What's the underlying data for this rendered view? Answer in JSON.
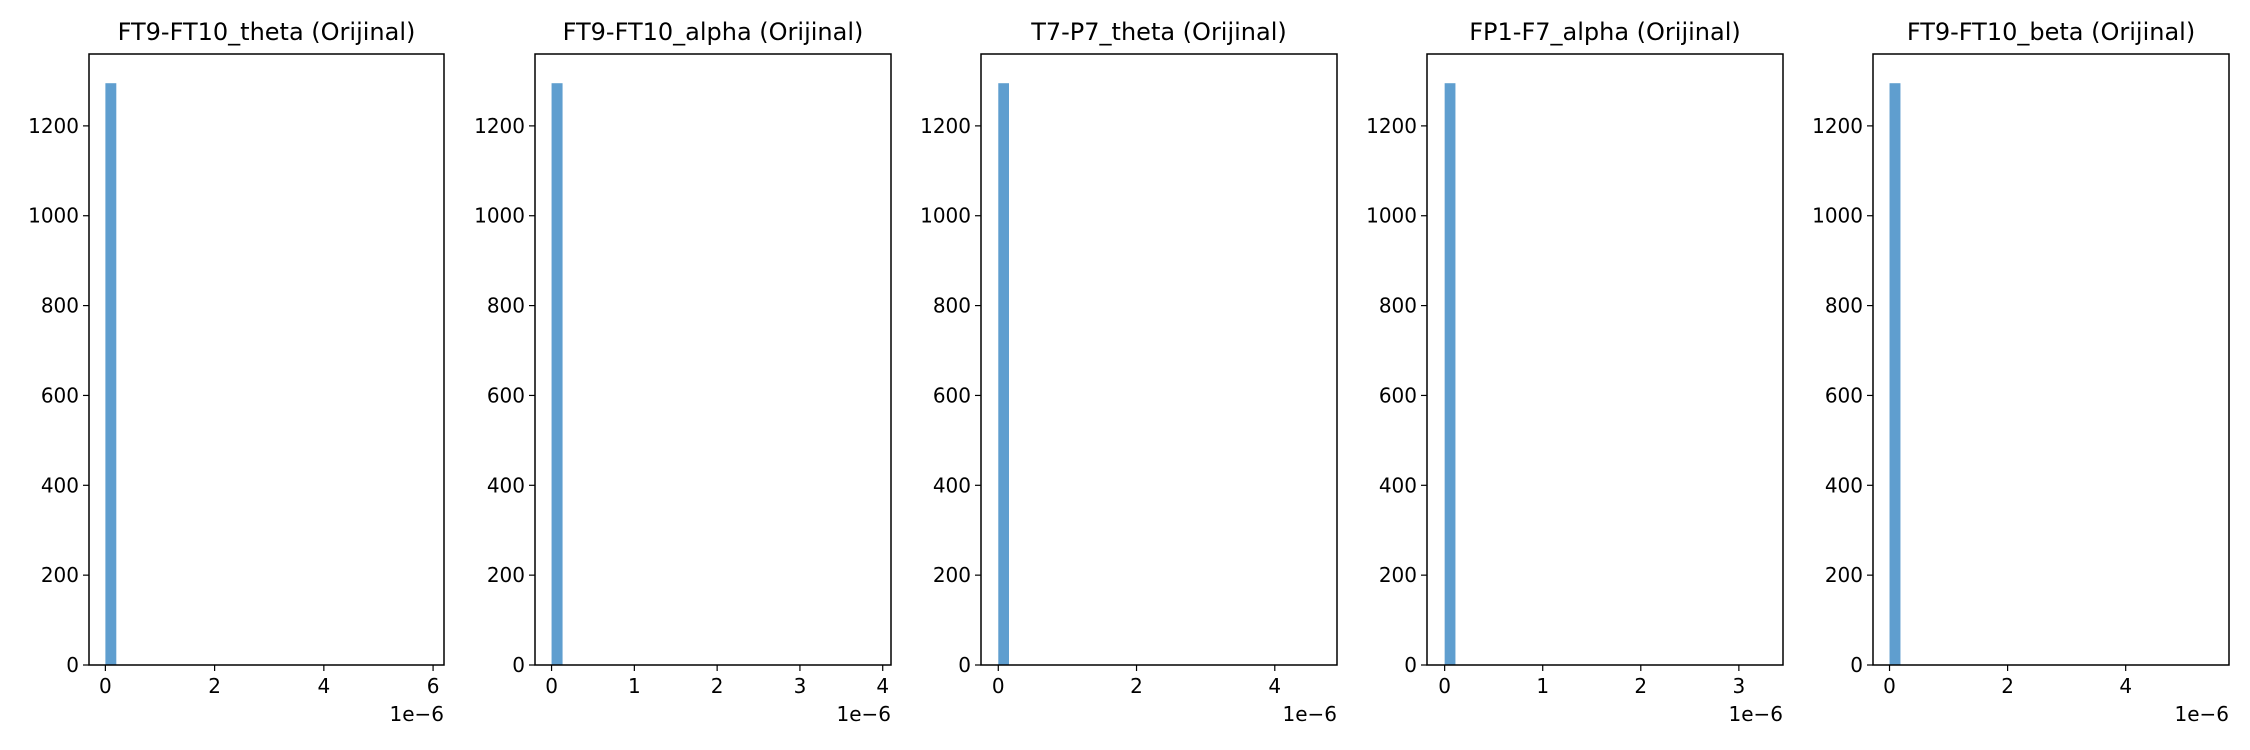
{
  "chart_data": [
    {
      "type": "bar",
      "title": "FT9-FT10_theta (Orijinal)",
      "xlabel": "",
      "ylabel": "",
      "x_offset_label": "1e−6",
      "xlim": [
        -0.3,
        6.2
      ],
      "ylim": [
        0,
        1360
      ],
      "xticks": [
        {
          "value": 0,
          "label": "0"
        },
        {
          "value": 2,
          "label": "2"
        },
        {
          "value": 4,
          "label": "4"
        },
        {
          "value": 6,
          "label": "6"
        }
      ],
      "yticks": [
        {
          "value": 0,
          "label": "0"
        },
        {
          "value": 200,
          "label": "200"
        },
        {
          "value": 400,
          "label": "400"
        },
        {
          "value": 600,
          "label": "600"
        },
        {
          "value": 800,
          "label": "800"
        },
        {
          "value": 1000,
          "label": "1000"
        },
        {
          "value": 1200,
          "label": "1200"
        }
      ],
      "bin_edges": [
        0.0,
        0.2
      ],
      "values": [
        1295
      ],
      "color": "#5f9ecf",
      "grid": false
    },
    {
      "type": "bar",
      "title": "FT9-FT10_alpha (Orijinal)",
      "xlabel": "",
      "ylabel": "",
      "x_offset_label": "1e−6",
      "xlim": [
        -0.2,
        4.1
      ],
      "ylim": [
        0,
        1360
      ],
      "xticks": [
        {
          "value": 0,
          "label": "0"
        },
        {
          "value": 1,
          "label": "1"
        },
        {
          "value": 2,
          "label": "2"
        },
        {
          "value": 3,
          "label": "3"
        },
        {
          "value": 4,
          "label": "4"
        }
      ],
      "yticks": [
        {
          "value": 0,
          "label": "0"
        },
        {
          "value": 200,
          "label": "200"
        },
        {
          "value": 400,
          "label": "400"
        },
        {
          "value": 600,
          "label": "600"
        },
        {
          "value": 800,
          "label": "800"
        },
        {
          "value": 1000,
          "label": "1000"
        },
        {
          "value": 1200,
          "label": "1200"
        }
      ],
      "bin_edges": [
        0.0,
        0.133
      ],
      "values": [
        1295
      ],
      "color": "#5f9ecf",
      "grid": false
    },
    {
      "type": "bar",
      "title": "T7-P7_theta (Orijinal)",
      "xlabel": "",
      "ylabel": "",
      "x_offset_label": "1e−6",
      "xlim": [
        -0.25,
        4.9
      ],
      "ylim": [
        0,
        1360
      ],
      "xticks": [
        {
          "value": 0,
          "label": "0"
        },
        {
          "value": 2,
          "label": "2"
        },
        {
          "value": 4,
          "label": "4"
        }
      ],
      "yticks": [
        {
          "value": 0,
          "label": "0"
        },
        {
          "value": 200,
          "label": "200"
        },
        {
          "value": 400,
          "label": "400"
        },
        {
          "value": 600,
          "label": "600"
        },
        {
          "value": 800,
          "label": "800"
        },
        {
          "value": 1000,
          "label": "1000"
        },
        {
          "value": 1200,
          "label": "1200"
        }
      ],
      "bin_edges": [
        0.0,
        0.155
      ],
      "values": [
        1295
      ],
      "color": "#5f9ecf",
      "grid": false
    },
    {
      "type": "bar",
      "title": "FP1-F7_alpha (Orijinal)",
      "xlabel": "",
      "ylabel": "",
      "x_offset_label": "1e−6",
      "xlim": [
        -0.18,
        3.45
      ],
      "ylim": [
        0,
        1360
      ],
      "xticks": [
        {
          "value": 0,
          "label": "0"
        },
        {
          "value": 1,
          "label": "1"
        },
        {
          "value": 2,
          "label": "2"
        },
        {
          "value": 3,
          "label": "3"
        }
      ],
      "yticks": [
        {
          "value": 0,
          "label": "0"
        },
        {
          "value": 200,
          "label": "200"
        },
        {
          "value": 400,
          "label": "400"
        },
        {
          "value": 600,
          "label": "600"
        },
        {
          "value": 800,
          "label": "800"
        },
        {
          "value": 1000,
          "label": "1000"
        },
        {
          "value": 1200,
          "label": "1200"
        }
      ],
      "bin_edges": [
        0.0,
        0.11
      ],
      "values": [
        1295
      ],
      "color": "#5f9ecf",
      "grid": false
    },
    {
      "type": "bar",
      "title": "FT9-FT10_beta (Orijinal)",
      "xlabel": "",
      "ylabel": "",
      "x_offset_label": "1e−6",
      "xlim": [
        -0.28,
        5.75
      ],
      "ylim": [
        0,
        1360
      ],
      "xticks": [
        {
          "value": 0,
          "label": "0"
        },
        {
          "value": 2,
          "label": "2"
        },
        {
          "value": 4,
          "label": "4"
        }
      ],
      "yticks": [
        {
          "value": 0,
          "label": "0"
        },
        {
          "value": 200,
          "label": "200"
        },
        {
          "value": 400,
          "label": "400"
        },
        {
          "value": 600,
          "label": "600"
        },
        {
          "value": 800,
          "label": "800"
        },
        {
          "value": 1000,
          "label": "1000"
        },
        {
          "value": 1200,
          "label": "1200"
        }
      ],
      "bin_edges": [
        0.0,
        0.185
      ],
      "values": [
        1295
      ],
      "color": "#5f9ecf",
      "grid": false
    }
  ]
}
